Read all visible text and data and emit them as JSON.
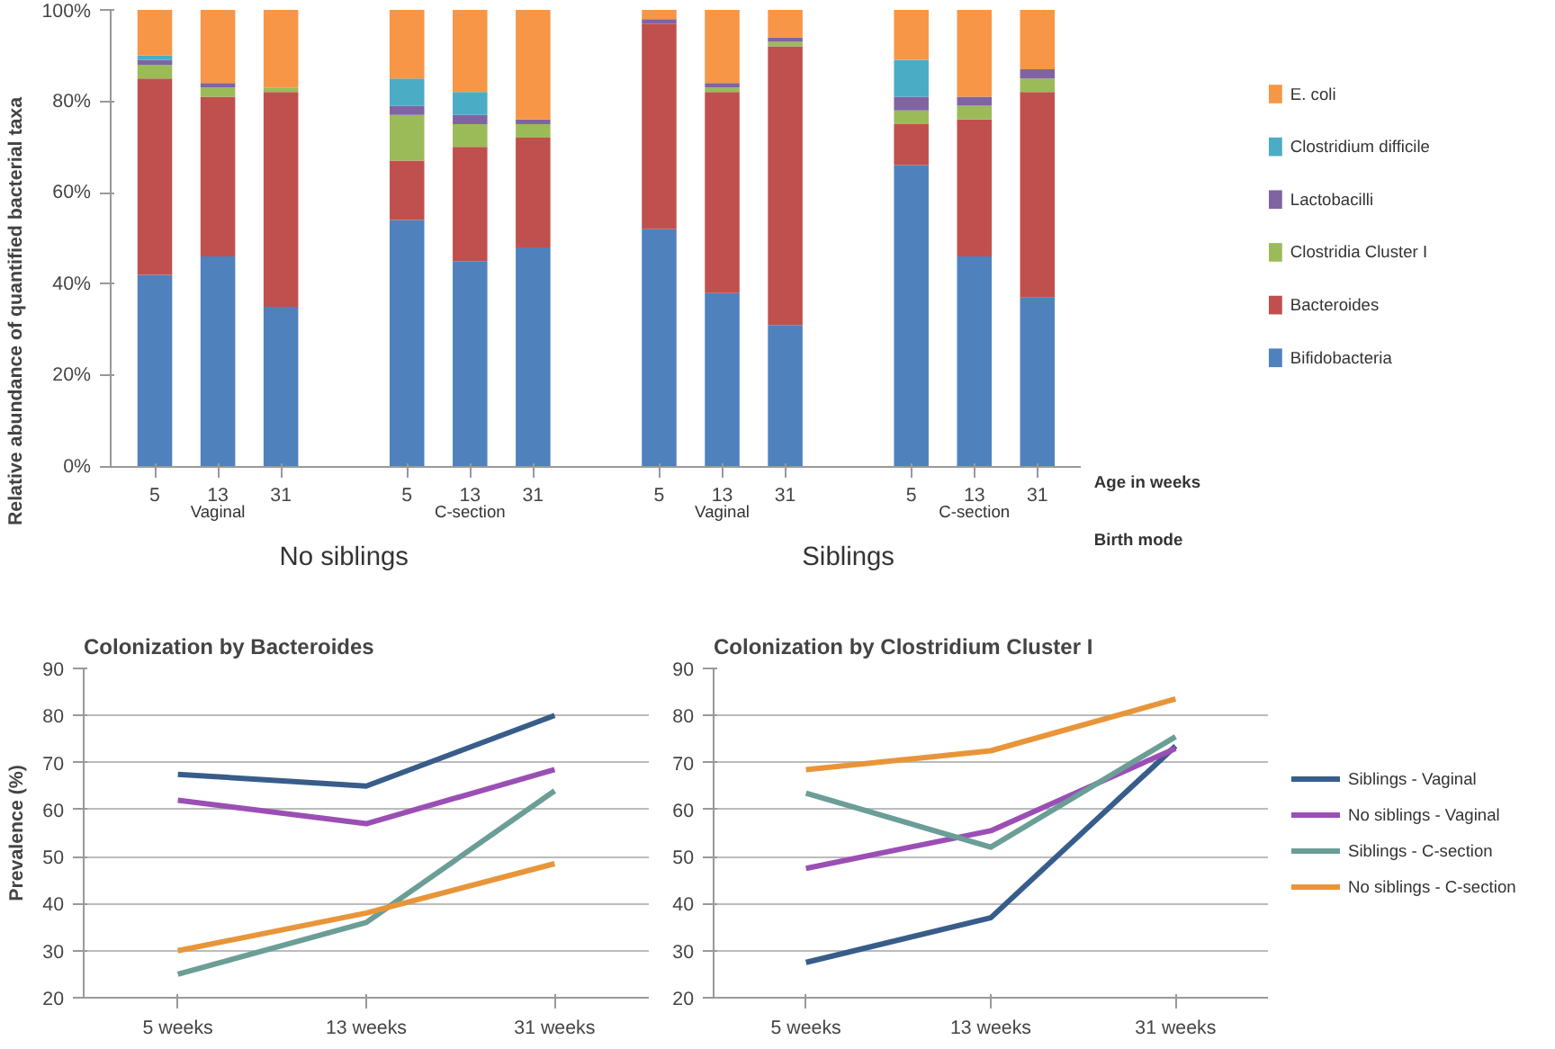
{
  "chart_data": [
    {
      "type": "bar",
      "stacked": true,
      "ylabel": "Relative abundance of quantified bacterial taxa",
      "categories": [
        "5",
        "13",
        "31",
        null,
        "5",
        "13",
        "31",
        null,
        "5",
        "13",
        "31",
        null,
        "5",
        "13",
        "31"
      ],
      "series": [
        {
          "name": "Bifidobacteria",
          "color": "#4f81bd",
          "values": [
            42,
            46,
            35,
            null,
            54,
            45,
            48,
            null,
            52,
            38,
            31,
            null,
            66,
            46,
            37
          ]
        },
        {
          "name": "Bacteroides",
          "color": "#c0504d",
          "values": [
            43,
            35,
            47,
            null,
            13,
            25,
            24,
            null,
            45,
            44,
            61,
            null,
            9,
            30,
            45
          ]
        },
        {
          "name": "Clostridia Cluster I",
          "color": "#9bbb59",
          "values": [
            3,
            2,
            1,
            null,
            10,
            5,
            3,
            null,
            0,
            1,
            1,
            null,
            3,
            3,
            3
          ]
        },
        {
          "name": "Lactobacilli",
          "color": "#8064a2",
          "values": [
            1,
            1,
            0,
            null,
            2,
            2,
            1,
            null,
            1,
            1,
            1,
            null,
            3,
            2,
            2
          ]
        },
        {
          "name": "Clostridium difficile",
          "color": "#4bacc6",
          "values": [
            1,
            0,
            0,
            null,
            6,
            5,
            0,
            null,
            0,
            0,
            0,
            null,
            8,
            0,
            0
          ]
        },
        {
          "name": "E. coli",
          "color": "#f79646",
          "values": [
            10,
            16,
            17,
            null,
            15,
            18,
            24,
            null,
            2,
            16,
            6,
            null,
            11,
            19,
            13
          ]
        }
      ],
      "ylim": [
        0,
        100
      ],
      "yticks": [
        {
          "value": 0,
          "label": "0%"
        },
        {
          "value": 20,
          "label": "20%"
        },
        {
          "value": 40,
          "label": "40%"
        },
        {
          "value": 60,
          "label": "60%"
        },
        {
          "value": 80,
          "label": "80%"
        },
        {
          "value": 100,
          "label": "100%"
        }
      ],
      "legend": "right",
      "annotations": [
        "Vaginal",
        "C-section",
        "Vaginal",
        "C-section",
        "No siblings",
        "Siblings",
        "Age in weeks",
        "Birth mode"
      ]
    },
    {
      "type": "line",
      "title": "Colonization by Bacteroides",
      "ylabel": "Prevalence (%)",
      "categories": [
        "5 weeks",
        "13 weeks",
        "31 weeks"
      ],
      "series": [
        {
          "color": "#385d8a",
          "values": [
            67.5,
            65,
            80
          ]
        },
        {
          "color": "#9b4fb5",
          "values": [
            62,
            57,
            68.5
          ]
        },
        {
          "color": "#6a9e96",
          "values": [
            25,
            36,
            64
          ]
        },
        {
          "color": "#e8953a",
          "values": [
            30,
            38,
            48.5
          ]
        }
      ],
      "ylim": [
        20,
        90
      ],
      "yticks": [
        20,
        30,
        40,
        50,
        60,
        70,
        80,
        90
      ],
      "grid": "y"
    },
    {
      "type": "line",
      "title": "Colonization by Clostridium Cluster I",
      "categories": [
        "5 weeks",
        "13 weeks",
        "31 weeks"
      ],
      "series": [
        {
          "name": "Siblings - Vaginal",
          "color": "#385d8a",
          "values": [
            27.5,
            37,
            73.5
          ]
        },
        {
          "name": "No siblings - Vaginal",
          "color": "#9b4fb5",
          "values": [
            47.5,
            55.5,
            73
          ]
        },
        {
          "name": "Siblings - C-section",
          "color": "#6a9e96",
          "values": [
            63.5,
            52,
            75.5
          ]
        },
        {
          "name": "No siblings - C-section",
          "color": "#e8953a",
          "values": [
            68.5,
            72.5,
            83.5
          ]
        }
      ],
      "ylim": [
        20,
        90
      ],
      "yticks": [
        20,
        30,
        40,
        50,
        60,
        70,
        80,
        90
      ],
      "grid": "y",
      "legend": "right"
    }
  ]
}
